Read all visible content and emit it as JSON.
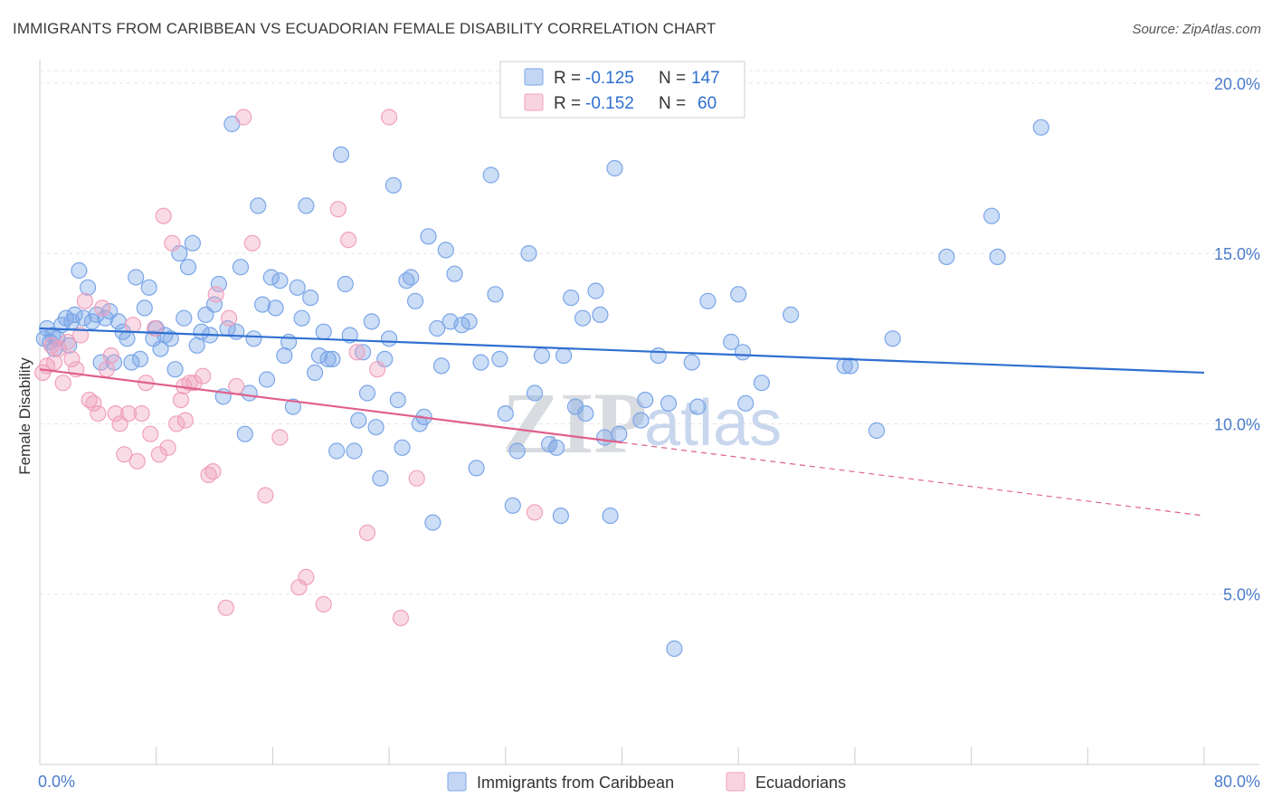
{
  "title": "IMMIGRANTS FROM CARIBBEAN VS ECUADORIAN FEMALE DISABILITY CORRELATION CHART",
  "source": "Source: ZipAtlas.com",
  "watermark": {
    "zip": "ZIP",
    "atlas": "atlas"
  },
  "legend": {
    "r_label": "R =",
    "n_label": "N =",
    "rows": [
      {
        "r": "-0.125",
        "n": "147",
        "color": "#7aa6e8"
      },
      {
        "r": "-0.152",
        "n": "60",
        "color": "#f0a0bc"
      }
    ]
  },
  "chart_data": {
    "type": "scatter",
    "title": "IMMIGRANTS FROM CARIBBEAN VS ECUADORIAN FEMALE DISABILITY CORRELATION CHART",
    "ylabel": "Female Disability",
    "xlim": [
      0,
      80
    ],
    "ylim": [
      0,
      20.5
    ],
    "x_tick_labels": [
      "0.0%",
      "80.0%"
    ],
    "y_ticks": [
      5,
      10,
      15,
      20
    ],
    "y_tick_labels": [
      "5.0%",
      "10.0%",
      "15.0%",
      "20.0%"
    ],
    "grid": true,
    "legend_position": "top-center",
    "series": [
      {
        "name": "Immigrants from Caribbean",
        "color": "#7aa6e8",
        "line_color": "#2f6fd0",
        "trend": {
          "x": [
            0,
            80
          ],
          "y": [
            12.8,
            11.5
          ],
          "dashed_from": null
        },
        "points": [
          [
            0.3,
            12.5
          ],
          [
            0.5,
            12.8
          ],
          [
            0.7,
            12.4
          ],
          [
            0.9,
            12.6
          ],
          [
            1.0,
            12.2
          ],
          [
            1.2,
            12.5
          ],
          [
            1.5,
            12.9
          ],
          [
            1.8,
            13.1
          ],
          [
            2.0,
            12.3
          ],
          [
            2.2,
            13.0
          ],
          [
            2.4,
            13.2
          ],
          [
            2.7,
            14.5
          ],
          [
            3.0,
            13.1
          ],
          [
            3.3,
            14.0
          ],
          [
            3.6,
            13.0
          ],
          [
            3.9,
            13.2
          ],
          [
            4.2,
            11.8
          ],
          [
            4.5,
            13.1
          ],
          [
            4.8,
            13.3
          ],
          [
            5.1,
            11.8
          ],
          [
            5.4,
            13.0
          ],
          [
            5.7,
            12.7
          ],
          [
            6.0,
            12.5
          ],
          [
            6.3,
            11.8
          ],
          [
            6.6,
            14.3
          ],
          [
            6.9,
            11.9
          ],
          [
            7.2,
            13.4
          ],
          [
            7.5,
            14.0
          ],
          [
            7.8,
            12.5
          ],
          [
            8.0,
            12.8
          ],
          [
            8.3,
            12.2
          ],
          [
            8.6,
            12.6
          ],
          [
            9.0,
            12.5
          ],
          [
            9.3,
            11.6
          ],
          [
            9.6,
            15.0
          ],
          [
            9.9,
            13.1
          ],
          [
            10.2,
            14.6
          ],
          [
            10.5,
            15.3
          ],
          [
            10.8,
            12.3
          ],
          [
            11.1,
            12.7
          ],
          [
            11.4,
            13.2
          ],
          [
            11.7,
            12.6
          ],
          [
            12.0,
            13.5
          ],
          [
            12.3,
            14.1
          ],
          [
            12.6,
            10.8
          ],
          [
            12.9,
            12.8
          ],
          [
            13.2,
            18.8
          ],
          [
            13.5,
            12.7
          ],
          [
            13.8,
            14.6
          ],
          [
            14.1,
            9.7
          ],
          [
            14.4,
            10.9
          ],
          [
            14.7,
            12.5
          ],
          [
            15.0,
            16.4
          ],
          [
            15.3,
            13.5
          ],
          [
            15.6,
            11.3
          ],
          [
            15.9,
            14.3
          ],
          [
            16.2,
            13.4
          ],
          [
            16.5,
            14.2
          ],
          [
            16.8,
            12.0
          ],
          [
            17.1,
            12.4
          ],
          [
            17.4,
            10.5
          ],
          [
            17.7,
            14.0
          ],
          [
            18.0,
            13.1
          ],
          [
            18.3,
            16.4
          ],
          [
            18.6,
            13.7
          ],
          [
            18.9,
            11.5
          ],
          [
            19.2,
            12.0
          ],
          [
            19.5,
            12.7
          ],
          [
            19.8,
            11.9
          ],
          [
            20.1,
            11.9
          ],
          [
            20.4,
            9.2
          ],
          [
            20.7,
            17.9
          ],
          [
            21.0,
            14.1
          ],
          [
            21.3,
            12.6
          ],
          [
            21.6,
            9.2
          ],
          [
            21.9,
            10.1
          ],
          [
            22.2,
            12.1
          ],
          [
            22.5,
            10.9
          ],
          [
            22.8,
            13.0
          ],
          [
            23.1,
            9.9
          ],
          [
            23.4,
            8.4
          ],
          [
            23.7,
            11.9
          ],
          [
            24.0,
            12.5
          ],
          [
            24.3,
            17.0
          ],
          [
            24.6,
            10.7
          ],
          [
            24.9,
            9.3
          ],
          [
            25.2,
            14.2
          ],
          [
            25.5,
            14.3
          ],
          [
            25.8,
            13.6
          ],
          [
            26.1,
            10.0
          ],
          [
            26.4,
            10.2
          ],
          [
            26.7,
            15.5
          ],
          [
            27.0,
            7.1
          ],
          [
            27.3,
            12.8
          ],
          [
            27.6,
            11.7
          ],
          [
            27.9,
            15.1
          ],
          [
            28.2,
            13.0
          ],
          [
            28.5,
            14.4
          ],
          [
            29.0,
            12.9
          ],
          [
            29.5,
            13.0
          ],
          [
            30.0,
            8.7
          ],
          [
            30.3,
            11.8
          ],
          [
            31.0,
            17.3
          ],
          [
            31.3,
            13.8
          ],
          [
            31.6,
            11.9
          ],
          [
            32.0,
            10.3
          ],
          [
            32.5,
            7.6
          ],
          [
            32.8,
            9.2
          ],
          [
            33.6,
            15.0
          ],
          [
            34.0,
            10.9
          ],
          [
            34.5,
            12.0
          ],
          [
            35.0,
            9.4
          ],
          [
            35.5,
            9.3
          ],
          [
            35.8,
            7.3
          ],
          [
            36.0,
            12.0
          ],
          [
            36.5,
            13.7
          ],
          [
            36.8,
            10.5
          ],
          [
            37.3,
            13.1
          ],
          [
            37.5,
            10.3
          ],
          [
            38.2,
            13.9
          ],
          [
            38.5,
            13.2
          ],
          [
            38.8,
            9.6
          ],
          [
            39.2,
            7.3
          ],
          [
            39.5,
            17.5
          ],
          [
            39.8,
            9.7
          ],
          [
            41.3,
            10.1
          ],
          [
            41.6,
            10.7
          ],
          [
            42.5,
            12.0
          ],
          [
            43.2,
            10.6
          ],
          [
            43.6,
            3.4
          ],
          [
            44.8,
            11.8
          ],
          [
            45.2,
            10.5
          ],
          [
            45.9,
            13.6
          ],
          [
            47.5,
            12.4
          ],
          [
            48.0,
            13.8
          ],
          [
            48.3,
            12.1
          ],
          [
            48.5,
            10.6
          ],
          [
            49.6,
            11.2
          ],
          [
            51.6,
            13.2
          ],
          [
            55.7,
            11.7
          ],
          [
            55.3,
            11.7
          ],
          [
            57.5,
            9.8
          ],
          [
            58.6,
            12.5
          ],
          [
            62.3,
            14.9
          ],
          [
            65.4,
            16.1
          ],
          [
            65.8,
            14.9
          ],
          [
            68.8,
            18.7
          ]
        ]
      },
      {
        "name": "Ecuadorians",
        "color": "#f0a0bc",
        "line_color": "#e0608c",
        "trend": {
          "x": [
            0,
            80
          ],
          "y": [
            11.6,
            7.3
          ],
          "solid_until": 40
        },
        "points": [
          [
            0.2,
            11.5
          ],
          [
            0.5,
            11.7
          ],
          [
            0.8,
            12.3
          ],
          [
            1.0,
            11.8
          ],
          [
            1.3,
            12.2
          ],
          [
            1.6,
            11.2
          ],
          [
            1.9,
            12.4
          ],
          [
            2.2,
            11.9
          ],
          [
            2.5,
            11.6
          ],
          [
            2.8,
            12.6
          ],
          [
            3.1,
            13.6
          ],
          [
            3.4,
            10.7
          ],
          [
            3.7,
            10.6
          ],
          [
            4.0,
            10.3
          ],
          [
            4.3,
            13.4
          ],
          [
            4.6,
            11.6
          ],
          [
            4.9,
            12.0
          ],
          [
            5.2,
            10.3
          ],
          [
            5.5,
            10.0
          ],
          [
            5.8,
            9.1
          ],
          [
            6.1,
            10.3
          ],
          [
            6.4,
            12.9
          ],
          [
            6.7,
            8.9
          ],
          [
            7.0,
            10.3
          ],
          [
            7.3,
            11.2
          ],
          [
            7.6,
            9.7
          ],
          [
            7.9,
            12.8
          ],
          [
            8.2,
            9.1
          ],
          [
            8.5,
            16.1
          ],
          [
            8.8,
            9.3
          ],
          [
            9.1,
            15.3
          ],
          [
            9.4,
            10.0
          ],
          [
            9.7,
            10.7
          ],
          [
            10.0,
            10.1
          ],
          [
            10.3,
            11.2
          ],
          [
            10.6,
            11.2
          ],
          [
            11.2,
            11.4
          ],
          [
            11.6,
            8.5
          ],
          [
            11.9,
            8.6
          ],
          [
            12.1,
            13.8
          ],
          [
            13.0,
            13.1
          ],
          [
            13.5,
            11.1
          ],
          [
            14.0,
            19.0
          ],
          [
            14.6,
            15.3
          ],
          [
            15.5,
            7.9
          ],
          [
            16.5,
            9.6
          ],
          [
            17.8,
            5.2
          ],
          [
            18.3,
            5.5
          ],
          [
            19.5,
            4.7
          ],
          [
            20.5,
            16.3
          ],
          [
            21.2,
            15.4
          ],
          [
            21.8,
            12.1
          ],
          [
            22.5,
            6.8
          ],
          [
            23.2,
            11.6
          ],
          [
            24.0,
            19.0
          ],
          [
            24.8,
            4.3
          ],
          [
            25.9,
            8.4
          ],
          [
            34.0,
            7.4
          ],
          [
            9.9,
            11.1
          ],
          [
            12.8,
            4.6
          ]
        ]
      }
    ]
  },
  "bottom_legend": [
    {
      "label": "Immigrants from Caribbean",
      "color": "#7aa6e8"
    },
    {
      "label": "Ecuadorians",
      "color": "#f0a0bc"
    }
  ]
}
